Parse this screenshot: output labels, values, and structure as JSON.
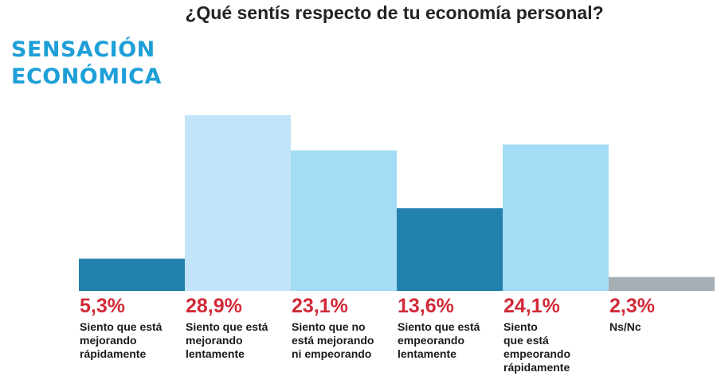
{
  "header": {
    "question": "¿Qué sentís respecto de tu economía personal?",
    "brand_line1": "SENSACIÓN",
    "brand_line2": "ECONÓMICA"
  },
  "chart_data": {
    "type": "bar",
    "title": "¿Qué sentís respecto de tu economía personal?",
    "subtitle": "SENSACIÓN ECONÓMICA",
    "value_suffix": "%",
    "decimal_separator": ",",
    "ylim": [
      0,
      30
    ],
    "grid": false,
    "categories": [
      [
        "Siento que está",
        "mejorando",
        "rápidamente"
      ],
      [
        "Siento que está",
        "mejorando",
        "lentamente"
      ],
      [
        "Siento que no",
        "está mejorando",
        "ni empeorando"
      ],
      [
        "Siento que está",
        "empeorando",
        "lentamente"
      ],
      [
        "Siento",
        "que está",
        "empeorando",
        "rápidamente"
      ],
      [
        "Ns/Nc"
      ]
    ],
    "values": [
      5.3,
      28.9,
      23.1,
      13.6,
      24.1,
      2.3
    ],
    "colors": [
      "#2282ad",
      "#c2e4f8",
      "#a4dcf5",
      "#2282ad",
      "#a4dcf5",
      "#a4aeb3"
    ],
    "value_label_color": "#d12a38"
  }
}
